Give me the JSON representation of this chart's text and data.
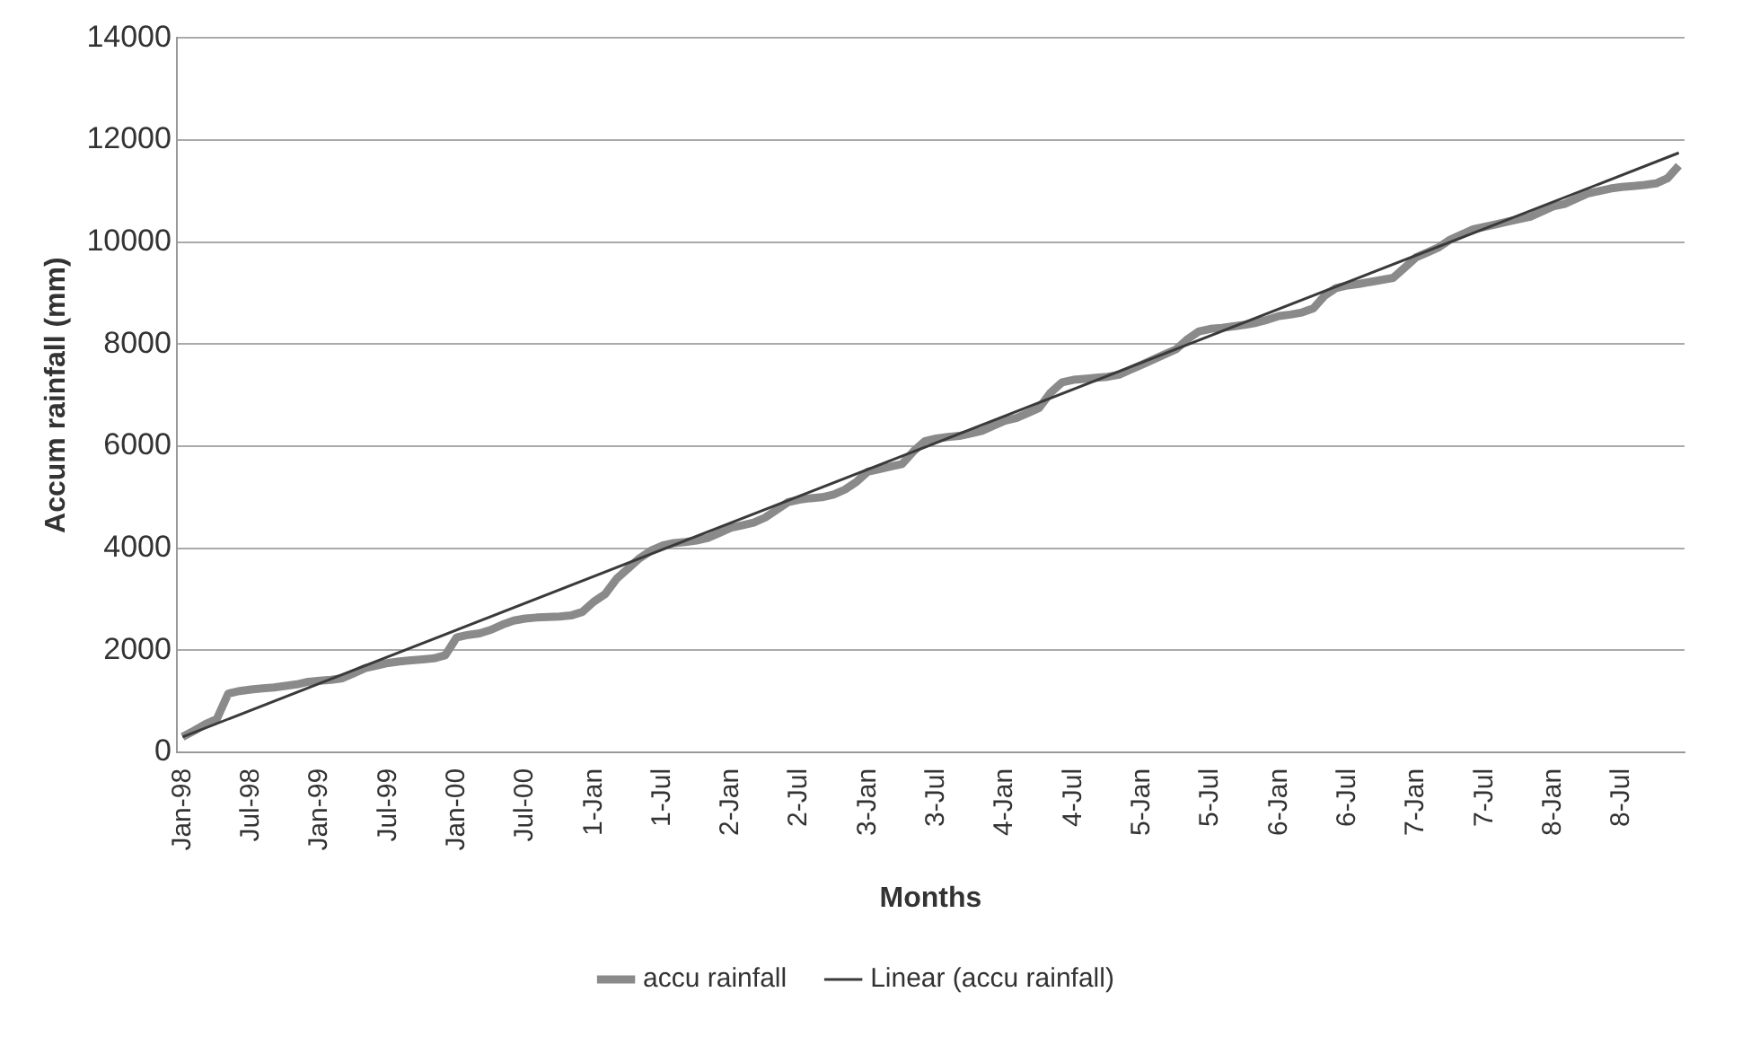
{
  "chart_data": {
    "type": "line",
    "xlabel": "Months",
    "ylabel": "Accum rainfall (mm)",
    "categories": [
      "Jan-98",
      null,
      null,
      null,
      null,
      null,
      "Jul-98",
      null,
      null,
      null,
      null,
      null,
      "Jan-99",
      null,
      null,
      null,
      null,
      null,
      "Jul-99",
      null,
      null,
      null,
      null,
      null,
      "Jan-00",
      null,
      null,
      null,
      null,
      null,
      "Jul-00",
      null,
      null,
      null,
      null,
      null,
      "1-Jan",
      null,
      null,
      null,
      null,
      null,
      "1-Jul",
      null,
      null,
      null,
      null,
      null,
      "2-Jan",
      null,
      null,
      null,
      null,
      null,
      "2-Jul",
      null,
      null,
      null,
      null,
      null,
      "3-Jan",
      null,
      null,
      null,
      null,
      null,
      "3-Jul",
      null,
      null,
      null,
      null,
      null,
      "4-Jan",
      null,
      null,
      null,
      null,
      null,
      "4-Jul",
      null,
      null,
      null,
      null,
      null,
      "5-Jan",
      null,
      null,
      null,
      null,
      null,
      "5-Jul",
      null,
      null,
      null,
      null,
      null,
      "6-Jan",
      null,
      null,
      null,
      null,
      null,
      "6-Jul",
      null,
      null,
      null,
      null,
      null,
      "7-Jan",
      null,
      null,
      null,
      null,
      null,
      "7-Jul",
      null,
      null,
      null,
      null,
      null,
      "8-Jan",
      null,
      null,
      null,
      null,
      null,
      "8-Jul",
      null,
      null,
      null,
      null,
      null
    ],
    "series": [
      {
        "name": "accu rainfall",
        "color": "#8a8a8a",
        "values": [
          300,
          420,
          550,
          650,
          1150,
          1200,
          1230,
          1250,
          1270,
          1300,
          1330,
          1380,
          1400,
          1420,
          1450,
          1550,
          1650,
          1700,
          1750,
          1780,
          1800,
          1820,
          1840,
          1900,
          2250,
          2300,
          2330,
          2400,
          2500,
          2580,
          2620,
          2640,
          2650,
          2660,
          2680,
          2750,
          2950,
          3100,
          3400,
          3600,
          3800,
          3950,
          4050,
          4100,
          4120,
          4150,
          4200,
          4300,
          4400,
          4450,
          4500,
          4600,
          4750,
          4900,
          4950,
          4980,
          5000,
          5050,
          5150,
          5300,
          5500,
          5550,
          5600,
          5650,
          5900,
          6100,
          6150,
          6180,
          6200,
          6250,
          6300,
          6400,
          6500,
          6550,
          6650,
          6750,
          7050,
          7250,
          7300,
          7320,
          7340,
          7360,
          7400,
          7500,
          7600,
          7700,
          7800,
          7900,
          8100,
          8250,
          8300,
          8320,
          8350,
          8380,
          8420,
          8480,
          8550,
          8580,
          8620,
          8700,
          8950,
          9100,
          9150,
          9180,
          9220,
          9260,
          9300,
          9500,
          9700,
          9800,
          9900,
          10050,
          10150,
          10250,
          10300,
          10350,
          10400,
          10450,
          10500,
          10600,
          10700,
          10750,
          10850,
          10950,
          11000,
          11050,
          11080,
          11100,
          11120,
          11150,
          11250,
          11500
        ]
      },
      {
        "name": "Linear (accu rainfall)",
        "color": "#3a3a3a",
        "type": "line",
        "values": [
          300,
          null,
          null,
          null,
          null,
          null,
          null,
          null,
          null,
          null,
          null,
          null,
          null,
          null,
          null,
          null,
          null,
          null,
          null,
          null,
          null,
          null,
          null,
          null,
          null,
          null,
          null,
          null,
          null,
          null,
          null,
          null,
          null,
          null,
          null,
          null,
          null,
          null,
          null,
          null,
          null,
          null,
          null,
          null,
          null,
          null,
          null,
          null,
          null,
          null,
          null,
          null,
          null,
          null,
          null,
          null,
          null,
          null,
          null,
          null,
          null,
          null,
          null,
          null,
          null,
          null,
          null,
          null,
          null,
          null,
          null,
          null,
          null,
          null,
          null,
          null,
          null,
          null,
          null,
          null,
          null,
          null,
          null,
          null,
          null,
          null,
          null,
          null,
          null,
          null,
          null,
          null,
          null,
          null,
          null,
          null,
          null,
          null,
          null,
          null,
          null,
          null,
          null,
          null,
          null,
          null,
          null,
          null,
          null,
          null,
          null,
          null,
          null,
          null,
          null,
          null,
          null,
          null,
          null,
          null,
          null,
          null,
          null,
          null,
          null,
          null,
          null,
          null,
          null,
          null,
          null,
          11750
        ]
      }
    ],
    "ylim": [
      0,
      14000
    ],
    "yticks": [
      0,
      2000,
      4000,
      6000,
      8000,
      10000,
      12000,
      14000
    ],
    "grid": "y",
    "legend": "bottom",
    "marker": "none",
    "line_style": "solid"
  }
}
